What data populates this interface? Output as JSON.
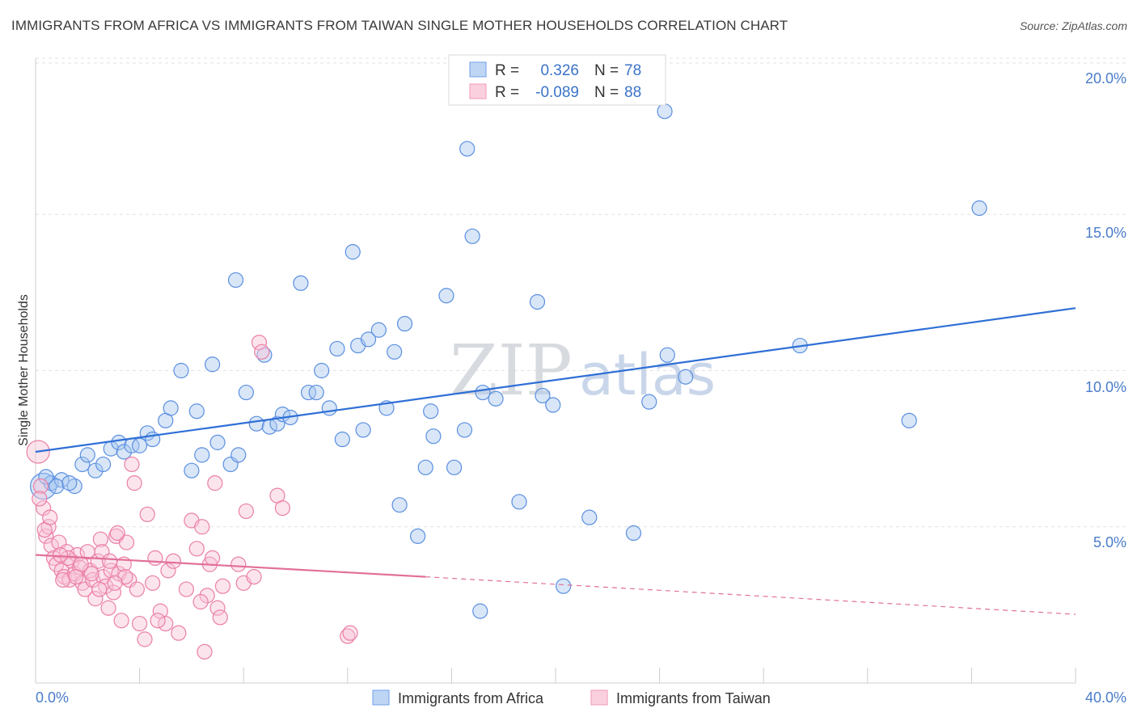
{
  "title": "IMMIGRANTS FROM AFRICA VS IMMIGRANTS FROM TAIWAN SINGLE MOTHER HOUSEHOLDS CORRELATION CHART",
  "source": "Source: ZipAtlas.com",
  "watermark": {
    "zip": "ZIP",
    "atlas": "atlas"
  },
  "stats": [
    {
      "r_label": "R =",
      "r_value": "0.326",
      "n_label": "N =",
      "n_value": "78",
      "color": "#6fa0e8"
    },
    {
      "r_label": "R =",
      "r_value": "-0.089",
      "n_label": "N =",
      "n_value": "88",
      "color": "#f19ab8"
    }
  ],
  "legend": [
    {
      "label": "Immigrants from Africa",
      "color": "#6fa0e8"
    },
    {
      "label": "Immigrants from Taiwan",
      "color": "#f19ab8"
    }
  ],
  "chart_data": {
    "type": "scatter",
    "title": "IMMIGRANTS FROM AFRICA VS IMMIGRANTS FROM TAIWAN SINGLE MOTHER HOUSEHOLDS CORRELATION CHART",
    "xlabel": "",
    "ylabel": "Single Mother Households",
    "xlim": [
      0,
      40
    ],
    "ylim": [
      0,
      20
    ],
    "x_tick_labels": [
      "0.0%",
      "40.0%"
    ],
    "y_tick_labels": [
      "5.0%",
      "10.0%",
      "15.0%",
      "20.0%"
    ],
    "y_ticks": [
      5,
      10,
      15,
      20
    ],
    "grid": true,
    "legend_position": "bottom-center",
    "series": [
      {
        "name": "Immigrants from Africa",
        "color": "#6fa0e8",
        "trend": {
          "x": [
            0,
            40
          ],
          "y": [
            7.4,
            12.0
          ]
        },
        "points": [
          [
            0.3,
            6.3
          ],
          [
            0.6,
            6.4
          ],
          [
            1.0,
            6.5
          ],
          [
            0.8,
            6.3
          ],
          [
            1.5,
            6.3
          ],
          [
            1.8,
            7.0
          ],
          [
            2.0,
            7.3
          ],
          [
            2.3,
            6.8
          ],
          [
            2.6,
            7.0
          ],
          [
            2.9,
            7.5
          ],
          [
            3.2,
            7.7
          ],
          [
            3.4,
            7.4
          ],
          [
            3.7,
            7.6
          ],
          [
            4.0,
            7.6
          ],
          [
            4.3,
            8.0
          ],
          [
            4.5,
            7.8
          ],
          [
            5.0,
            8.4
          ],
          [
            5.2,
            8.8
          ],
          [
            5.6,
            10.0
          ],
          [
            6.0,
            6.8
          ],
          [
            6.2,
            8.7
          ],
          [
            6.4,
            7.3
          ],
          [
            6.8,
            10.2
          ],
          [
            7.0,
            7.7
          ],
          [
            7.5,
            7.0
          ],
          [
            7.7,
            12.9
          ],
          [
            7.8,
            7.3
          ],
          [
            8.1,
            9.3
          ],
          [
            8.5,
            8.3
          ],
          [
            8.8,
            10.5
          ],
          [
            9.0,
            8.2
          ],
          [
            9.3,
            8.3
          ],
          [
            9.5,
            8.6
          ],
          [
            9.8,
            8.5
          ],
          [
            10.2,
            12.8
          ],
          [
            10.5,
            9.3
          ],
          [
            10.8,
            9.3
          ],
          [
            11.0,
            10.0
          ],
          [
            11.3,
            8.8
          ],
          [
            11.6,
            10.7
          ],
          [
            11.8,
            7.8
          ],
          [
            12.2,
            13.8
          ],
          [
            12.4,
            10.8
          ],
          [
            12.6,
            8.1
          ],
          [
            12.8,
            11.0
          ],
          [
            13.2,
            11.3
          ],
          [
            13.5,
            8.8
          ],
          [
            13.8,
            10.6
          ],
          [
            14.0,
            5.7
          ],
          [
            14.2,
            11.5
          ],
          [
            14.7,
            4.7
          ],
          [
            15.0,
            6.9
          ],
          [
            15.2,
            8.7
          ],
          [
            15.3,
            7.9
          ],
          [
            15.8,
            12.4
          ],
          [
            16.1,
            6.9
          ],
          [
            16.5,
            8.1
          ],
          [
            16.6,
            17.1
          ],
          [
            16.8,
            14.3
          ],
          [
            17.1,
            2.3
          ],
          [
            17.2,
            9.3
          ],
          [
            17.7,
            9.1
          ],
          [
            18.6,
            5.8
          ],
          [
            19.3,
            12.2
          ],
          [
            19.5,
            9.2
          ],
          [
            19.9,
            8.9
          ],
          [
            20.3,
            3.1
          ],
          [
            21.3,
            5.3
          ],
          [
            23.0,
            4.8
          ],
          [
            23.6,
            9.0
          ],
          [
            24.2,
            18.3
          ],
          [
            24.3,
            10.5
          ],
          [
            25.0,
            9.8
          ],
          [
            29.4,
            10.8
          ],
          [
            33.6,
            8.4
          ],
          [
            36.3,
            15.2
          ],
          [
            0.4,
            6.6
          ],
          [
            1.3,
            6.4
          ]
        ]
      },
      {
        "name": "Immigrants from Taiwan",
        "color": "#f19ab8",
        "trend": {
          "x": [
            0,
            15
          ],
          "y": [
            4.1,
            3.4
          ],
          "dashed_x": [
            15,
            40
          ],
          "dashed_y": [
            3.4,
            2.2
          ]
        },
        "points": [
          [
            0.1,
            7.4
          ],
          [
            0.2,
            6.3
          ],
          [
            0.3,
            5.6
          ],
          [
            0.4,
            4.7
          ],
          [
            0.5,
            5.0
          ],
          [
            0.6,
            4.4
          ],
          [
            0.7,
            4.0
          ],
          [
            0.8,
            3.8
          ],
          [
            0.9,
            4.5
          ],
          [
            1.0,
            3.6
          ],
          [
            1.1,
            3.4
          ],
          [
            1.2,
            4.2
          ],
          [
            1.3,
            3.3
          ],
          [
            1.4,
            3.9
          ],
          [
            1.5,
            3.5
          ],
          [
            1.6,
            4.1
          ],
          [
            1.7,
            3.7
          ],
          [
            1.8,
            3.2
          ],
          [
            1.9,
            3.0
          ],
          [
            2.0,
            4.2
          ],
          [
            2.1,
            3.6
          ],
          [
            2.2,
            3.3
          ],
          [
            2.3,
            2.7
          ],
          [
            2.4,
            3.9
          ],
          [
            2.5,
            4.6
          ],
          [
            2.6,
            3.4
          ],
          [
            2.7,
            3.1
          ],
          [
            2.8,
            2.4
          ],
          [
            2.9,
            3.6
          ],
          [
            3.0,
            2.9
          ],
          [
            3.1,
            4.7
          ],
          [
            3.2,
            3.5
          ],
          [
            3.3,
            2.0
          ],
          [
            3.4,
            3.8
          ],
          [
            3.5,
            4.5
          ],
          [
            3.6,
            3.3
          ],
          [
            3.7,
            7.0
          ],
          [
            3.8,
            6.4
          ],
          [
            3.9,
            3.0
          ],
          [
            4.0,
            1.9
          ],
          [
            4.2,
            1.4
          ],
          [
            4.3,
            5.4
          ],
          [
            4.5,
            3.2
          ],
          [
            4.6,
            4.0
          ],
          [
            4.8,
            2.3
          ],
          [
            5.0,
            1.9
          ],
          [
            5.1,
            3.6
          ],
          [
            5.3,
            3.9
          ],
          [
            5.5,
            1.6
          ],
          [
            5.8,
            3.0
          ],
          [
            6.0,
            5.2
          ],
          [
            6.2,
            4.3
          ],
          [
            6.4,
            5.0
          ],
          [
            6.5,
            1.0
          ],
          [
            6.6,
            2.8
          ],
          [
            6.7,
            3.8
          ],
          [
            6.8,
            4.0
          ],
          [
            6.9,
            6.4
          ],
          [
            7.0,
            2.4
          ],
          [
            7.2,
            3.1
          ],
          [
            7.8,
            3.8
          ],
          [
            8.0,
            3.2
          ],
          [
            8.1,
            5.5
          ],
          [
            8.4,
            3.4
          ],
          [
            8.6,
            10.9
          ],
          [
            8.7,
            10.6
          ],
          [
            9.3,
            6.0
          ],
          [
            9.5,
            5.6
          ],
          [
            12.0,
            1.5
          ],
          [
            12.1,
            1.6
          ],
          [
            0.15,
            5.9
          ],
          [
            0.35,
            4.9
          ],
          [
            1.05,
            3.3
          ],
          [
            2.15,
            3.5
          ],
          [
            2.45,
            3.0
          ],
          [
            2.55,
            4.2
          ],
          [
            3.15,
            4.8
          ],
          [
            3.45,
            3.4
          ],
          [
            4.7,
            2.0
          ],
          [
            6.35,
            2.6
          ],
          [
            7.1,
            2.1
          ],
          [
            1.25,
            4.0
          ],
          [
            1.75,
            3.8
          ],
          [
            0.55,
            5.3
          ],
          [
            2.85,
            3.9
          ],
          [
            0.95,
            4.1
          ],
          [
            1.55,
            3.4
          ],
          [
            3.05,
            3.2
          ]
        ]
      }
    ]
  }
}
